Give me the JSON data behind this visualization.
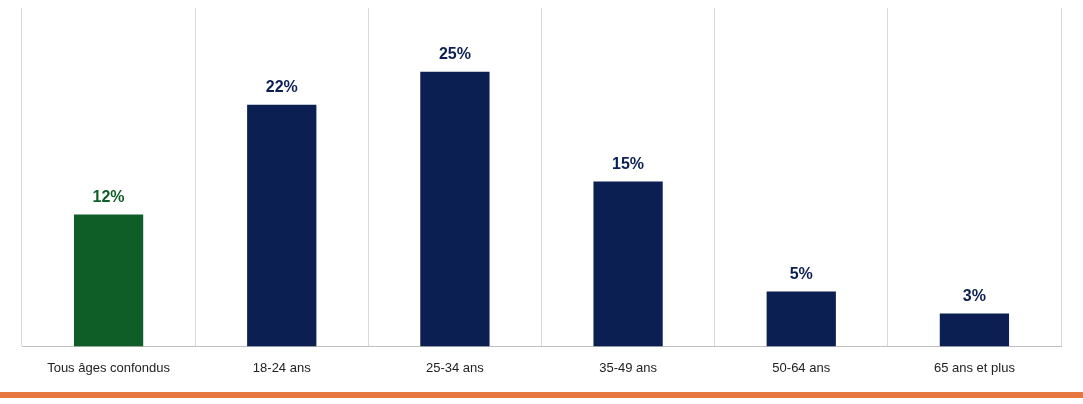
{
  "chart_data": {
    "type": "bar",
    "categories": [
      "Tous âges confondus",
      "18-24 ans",
      "25-34 ans",
      "35-49 ans",
      "50-64 ans",
      "65 ans et plus"
    ],
    "values": [
      12,
      22,
      25,
      15,
      5,
      3
    ],
    "colors": [
      "#0f5e28",
      "#0b1f52",
      "#0b1f52",
      "#0b1f52",
      "#0b1f52",
      "#0b1f52"
    ],
    "value_labels": [
      "12%",
      "22%",
      "25%",
      "15%",
      "5%",
      "3%"
    ],
    "ylim": [
      0,
      30.8
    ],
    "grid": "x",
    "legend": false
  }
}
